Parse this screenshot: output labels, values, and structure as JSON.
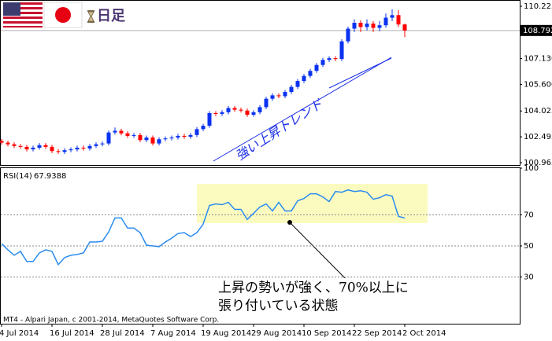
{
  "header": {
    "title": "日足"
  },
  "footer": "MT4 - Alpari Japan, c 2001-2014, MetaQuotes Software Corp.",
  "chart_data": [
    {
      "type": "candlestick",
      "open": [
        102.25,
        102.15,
        102.05,
        101.95,
        101.9,
        101.75,
        101.85,
        102.0,
        101.9,
        101.65,
        101.6,
        101.7,
        101.75,
        101.85,
        101.8,
        101.95,
        102.05,
        102.1,
        102.75,
        102.85,
        102.7,
        102.55,
        102.6,
        102.3,
        102.45,
        102.1,
        102.35,
        102.4,
        102.45,
        102.55,
        102.5,
        102.6,
        102.95,
        103.15,
        103.9,
        103.85,
        103.95,
        104.2,
        104.1,
        104.05,
        103.8,
        103.95,
        104.25,
        104.75,
        104.95,
        104.9,
        105.15,
        105.45,
        105.8,
        106.1,
        106.4,
        106.75,
        107.05,
        107.15,
        107.1,
        108.15,
        108.9,
        109.25,
        109.0,
        109.2,
        108.95,
        109.1,
        109.55,
        109.7,
        109.15
      ],
      "high": [
        102.37,
        102.27,
        102.17,
        102.07,
        102.02,
        101.97,
        102.12,
        102.12,
        102.02,
        101.77,
        101.82,
        101.87,
        101.97,
        101.97,
        102.07,
        102.17,
        102.22,
        102.87,
        103.05,
        102.97,
        102.82,
        102.72,
        102.72,
        102.57,
        102.57,
        102.47,
        102.52,
        102.57,
        102.67,
        102.67,
        102.72,
        103.07,
        103.27,
        104.02,
        104.02,
        104.07,
        104.32,
        104.32,
        104.22,
        104.17,
        104.07,
        104.37,
        104.87,
        105.07,
        105.07,
        105.27,
        105.57,
        105.92,
        106.22,
        106.52,
        106.87,
        107.17,
        107.27,
        107.27,
        108.27,
        109.02,
        109.45,
        109.4,
        109.45,
        109.35,
        109.35,
        109.8,
        110.05,
        110.0,
        109.2
      ],
      "low": [
        102.03,
        101.93,
        101.83,
        101.78,
        101.63,
        101.63,
        101.73,
        101.78,
        101.53,
        101.48,
        101.48,
        101.58,
        101.63,
        101.68,
        101.68,
        101.83,
        101.93,
        101.98,
        102.63,
        102.58,
        102.43,
        102.43,
        102.18,
        102.18,
        101.98,
        101.98,
        102.23,
        102.28,
        102.33,
        102.38,
        102.38,
        102.48,
        102.83,
        103.03,
        103.73,
        103.73,
        103.83,
        103.98,
        103.93,
        103.68,
        103.68,
        103.83,
        104.13,
        104.63,
        104.78,
        104.78,
        105.03,
        105.33,
        105.68,
        105.98,
        106.28,
        106.63,
        106.93,
        106.98,
        106.98,
        108.03,
        108.7,
        108.7,
        108.8,
        108.7,
        108.75,
        108.95,
        109.35,
        109.0,
        108.4
      ],
      "close": [
        102.15,
        102.05,
        101.95,
        101.9,
        101.75,
        101.85,
        102.0,
        101.9,
        101.65,
        101.6,
        101.7,
        101.75,
        101.85,
        101.8,
        101.95,
        102.05,
        102.1,
        102.75,
        102.85,
        102.7,
        102.55,
        102.6,
        102.3,
        102.45,
        102.1,
        102.35,
        102.4,
        102.45,
        102.55,
        102.5,
        102.6,
        102.95,
        103.15,
        103.9,
        103.85,
        103.95,
        104.2,
        104.1,
        104.05,
        103.8,
        103.95,
        104.25,
        104.75,
        104.95,
        104.9,
        105.15,
        105.45,
        105.8,
        106.1,
        106.4,
        106.75,
        107.05,
        107.15,
        107.1,
        108.15,
        108.9,
        109.25,
        109.0,
        109.2,
        108.95,
        109.1,
        109.55,
        109.7,
        109.15,
        108.792
      ],
      "up_color": "#0a32f0",
      "down_color": "#ff0000",
      "ylim": [
        100.825,
        110.552
      ],
      "yticks": [
        110.225,
        {
          "value": 107.13,
          "label": "107.130"
        },
        {
          "value": 105.6,
          "label": "105.600"
        },
        104.025,
        102.495,
        100.965
      ],
      "last_price": 108.792,
      "annotation": "強い上昇トレンド"
    },
    {
      "type": "line",
      "title": "RSI(14)",
      "categories": [
        "4 Jul 2014",
        null,
        null,
        null,
        null,
        null,
        null,
        null,
        "16 Jul 2014",
        null,
        null,
        null,
        null,
        null,
        null,
        null,
        "28 Jul 2014",
        null,
        null,
        null,
        null,
        null,
        null,
        null,
        "7 Aug 2014",
        null,
        null,
        null,
        null,
        null,
        null,
        null,
        "19 Aug 2014",
        null,
        null,
        null,
        null,
        null,
        null,
        null,
        "29 Aug 2014",
        null,
        null,
        null,
        null,
        null,
        null,
        null,
        "10 Sep 2014",
        null,
        null,
        null,
        null,
        null,
        null,
        null,
        "22 Sep 2014",
        null,
        null,
        null,
        null,
        null,
        null,
        null,
        "2 Oct 2014"
      ],
      "values": [
        51.5,
        47.5,
        44,
        46.5,
        40,
        40,
        45.5,
        47.5,
        46.5,
        38,
        42.5,
        44,
        44.5,
        45.5,
        52.5,
        52.5,
        53,
        59,
        68,
        68,
        61.5,
        61.5,
        58.5,
        50.5,
        50,
        49.5,
        52.5,
        55,
        58,
        58.5,
        56,
        58.5,
        64,
        76,
        77,
        76.5,
        78,
        73.5,
        73.5,
        67,
        71,
        75,
        77,
        72.5,
        78,
        72.5,
        72.5,
        79,
        80.5,
        83.5,
        83.5,
        81.5,
        78.5,
        85,
        84.5,
        86,
        85,
        85.5,
        84.5,
        80,
        81,
        83,
        82,
        69,
        67.9388
      ],
      "color": "#2a8cf0",
      "ylim": [
        0,
        100
      ],
      "yticks": [
        30,
        50,
        70,
        100
      ],
      "grid": true,
      "annotation": [
        "上昇の勢いが強く、70%以上に",
        "張り付いている状態"
      ]
    }
  ]
}
